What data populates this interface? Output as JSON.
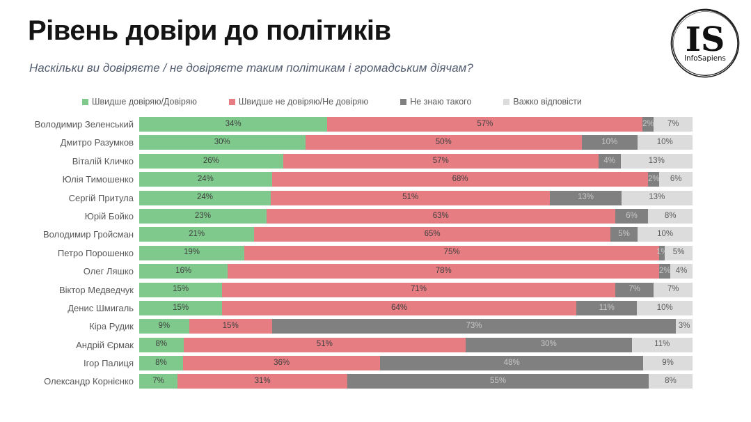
{
  "header": {
    "title": "Рівень довіри до політиків",
    "subtitle": "Наскільки ви довіряєте / не довіряєте таким політикам і громадським діячам?"
  },
  "logo": {
    "monogram": "IS",
    "name": "InfoSapiens"
  },
  "chart_data": {
    "type": "bar",
    "orientation": "horizontal-stacked",
    "unit": "%",
    "legend_position": "top",
    "xlim": [
      0,
      100
    ],
    "grid": false,
    "series_names": [
      "Швидше довіряю/Довіряю",
      "Швидше не довіряю/Не довіряю",
      "Не знаю такого",
      "Важко відповісти"
    ],
    "series_colors": [
      "#7EC98B",
      "#E57D82",
      "#808080",
      "#DCDCDC"
    ],
    "series_label_colors": [
      "#3F3F3F",
      "#3F3F3F",
      "#C8C8C8",
      "#595959"
    ],
    "categories": [
      "Володимир Зеленський",
      "Дмитро Разумков",
      "Віталій Кличко",
      "Юлія Тимошенко",
      "Сергій Притула",
      "Юрій Бойко",
      "Володимир Гройсман",
      "Петро Порошенко",
      "Олег Ляшко",
      "Віктор Медведчук",
      "Денис Шмигаль",
      "Кіра Рудик",
      "Андрій Єрмак",
      "Ігор Палиця",
      "Олександр Корнієнко"
    ],
    "rows": [
      {
        "name": "Володимир Зеленський",
        "values": [
          34,
          57,
          2,
          7
        ]
      },
      {
        "name": "Дмитро Разумков",
        "values": [
          30,
          50,
          10,
          10
        ]
      },
      {
        "name": "Віталій Кличко",
        "values": [
          26,
          57,
          4,
          13
        ]
      },
      {
        "name": "Юлія Тимошенко",
        "values": [
          24,
          68,
          2,
          6
        ]
      },
      {
        "name": "Сергій Притула",
        "values": [
          24,
          51,
          13,
          13
        ]
      },
      {
        "name": "Юрій Бойко",
        "values": [
          23,
          63,
          6,
          8
        ]
      },
      {
        "name": "Володимир Гройсман",
        "values": [
          21,
          65,
          5,
          10
        ]
      },
      {
        "name": "Петро Порошенко",
        "values": [
          19,
          75,
          1,
          5
        ]
      },
      {
        "name": "Олег Ляшко",
        "values": [
          16,
          78,
          2,
          4
        ]
      },
      {
        "name": "Віктор Медведчук",
        "values": [
          15,
          71,
          7,
          7
        ]
      },
      {
        "name": "Денис Шмигаль",
        "values": [
          15,
          64,
          11,
          10
        ]
      },
      {
        "name": "Кіра Рудик",
        "values": [
          9,
          15,
          73,
          3
        ]
      },
      {
        "name": "Андрій Єрмак",
        "values": [
          8,
          51,
          30,
          11
        ]
      },
      {
        "name": "Ігор Палиця",
        "values": [
          8,
          36,
          48,
          9
        ]
      },
      {
        "name": "Олександр Корнієнко",
        "values": [
          7,
          31,
          55,
          8
        ]
      }
    ]
  }
}
